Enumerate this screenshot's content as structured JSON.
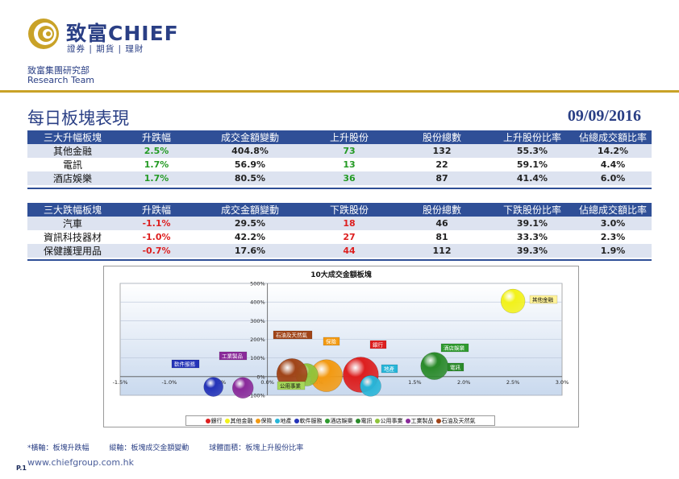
{
  "brand": {
    "name": "致富CHIEF",
    "tagline": "證券 | 期貨 | 理財",
    "dept_cn": "致富集團研究部",
    "dept_en": "Research Team",
    "color": "#2a3f85",
    "accent": "#c9a227"
  },
  "page": {
    "title": "每日板塊表現",
    "date": "09/09/2016"
  },
  "gainers": {
    "headers": [
      "三大升幅板塊",
      "升跌幅",
      "成交金額變動",
      "上升股份",
      "股份總數",
      "上升股份比率",
      "佔總成交額比率"
    ],
    "rows": [
      [
        "其他金融",
        "2.5%",
        "404.8%",
        "73",
        "132",
        "55.3%",
        "14.2%"
      ],
      [
        "電訊",
        "1.7%",
        "56.9%",
        "13",
        "22",
        "59.1%",
        "4.4%"
      ],
      [
        "酒店娛樂",
        "1.7%",
        "80.5%",
        "36",
        "87",
        "41.4%",
        "6.0%"
      ]
    ]
  },
  "losers": {
    "headers": [
      "三大跌幅板塊",
      "升跌幅",
      "成交金額變動",
      "下跌股份",
      "股份總數",
      "下跌股份比率",
      "佔總成交額比率"
    ],
    "rows": [
      [
        "汽車",
        "-1.1%",
        "29.5%",
        "18",
        "46",
        "39.1%",
        "3.0%"
      ],
      [
        "資訊科技器材",
        "-1.0%",
        "42.2%",
        "27",
        "81",
        "33.3%",
        "2.3%"
      ],
      [
        "保健護理用品",
        "-0.7%",
        "17.6%",
        "44",
        "112",
        "39.3%",
        "1.9%"
      ]
    ]
  },
  "chart_data": {
    "type": "scatter",
    "title": "10大成交金額板塊",
    "xlim": [
      -1.5,
      3.0
    ],
    "ylim": [
      -100,
      500
    ],
    "x_ticks": [
      "-1.5%",
      "-1.0%",
      "-0.5%",
      "0.0%",
      "0.5%",
      "1.0%",
      "1.5%",
      "2.0%",
      "2.5%",
      "3.0%"
    ],
    "y_ticks": [
      "-100%",
      "0%",
      "100%",
      "200%",
      "300%",
      "400%",
      "500%"
    ],
    "grid": true,
    "legend_position": "bottom",
    "series": [
      {
        "name": "銀行",
        "x": 0.95,
        "y": 10,
        "size": 22,
        "color": "#dd1f1f"
      },
      {
        "name": "其他金融",
        "x": 2.5,
        "y": 404.8,
        "size": 15,
        "color": "#f2f21a"
      },
      {
        "name": "保險",
        "x": 0.6,
        "y": 5,
        "size": 20,
        "color": "#f39a12"
      },
      {
        "name": "地產",
        "x": 1.05,
        "y": -50,
        "size": 13,
        "color": "#27b5d8"
      },
      {
        "name": "軟件服務",
        "x": -0.55,
        "y": -55,
        "size": 12,
        "color": "#2433b8"
      },
      {
        "name": "酒店娛樂",
        "x": 1.7,
        "y": 80.5,
        "size": 8,
        "color": "#2f9a2f"
      },
      {
        "name": "電訊",
        "x": 1.7,
        "y": 56.9,
        "size": 17,
        "color": "#2a8a2a"
      },
      {
        "name": "公用事業",
        "x": 0.4,
        "y": 10,
        "size": 14,
        "color": "#8fc43c"
      },
      {
        "name": "工業製品",
        "x": -0.25,
        "y": -60,
        "size": 13,
        "color": "#8a2a9a"
      },
      {
        "name": "石油及天然氣",
        "x": 0.25,
        "y": 15,
        "size": 19,
        "color": "#a04418"
      }
    ],
    "labels": [
      {
        "name": "其他金融",
        "bg": "#fff39a",
        "fg": "#111"
      },
      {
        "name": "石油及天然氣",
        "bg": "#a04418",
        "fg": "#fff"
      },
      {
        "name": "保險",
        "bg": "#f39a12",
        "fg": "#fff"
      },
      {
        "name": "銀行",
        "bg": "#dd1f1f",
        "fg": "#fff"
      },
      {
        "name": "酒店娛樂",
        "bg": "#2f9a2f",
        "fg": "#fff"
      },
      {
        "name": "工業製品",
        "bg": "#8a2a9a",
        "fg": "#fff"
      },
      {
        "name": "軟件服務",
        "bg": "#2433b8",
        "fg": "#fff"
      },
      {
        "name": "地產",
        "bg": "#27b5d8",
        "fg": "#fff"
      },
      {
        "name": "電訊",
        "bg": "#2a8a2a",
        "fg": "#fff"
      },
      {
        "name": "公用事業",
        "bg": "#a6d75a",
        "fg": "#111"
      }
    ]
  },
  "footnote": {
    "x_axis": "*橫軸：板塊升跌幅",
    "y_axis": "縱軸：板塊成交金額變動",
    "bubble": "球體面積：板塊上升股份比率"
  },
  "footer": {
    "page_no": "P.1",
    "site": "www.chiefgroup.com.hk"
  }
}
